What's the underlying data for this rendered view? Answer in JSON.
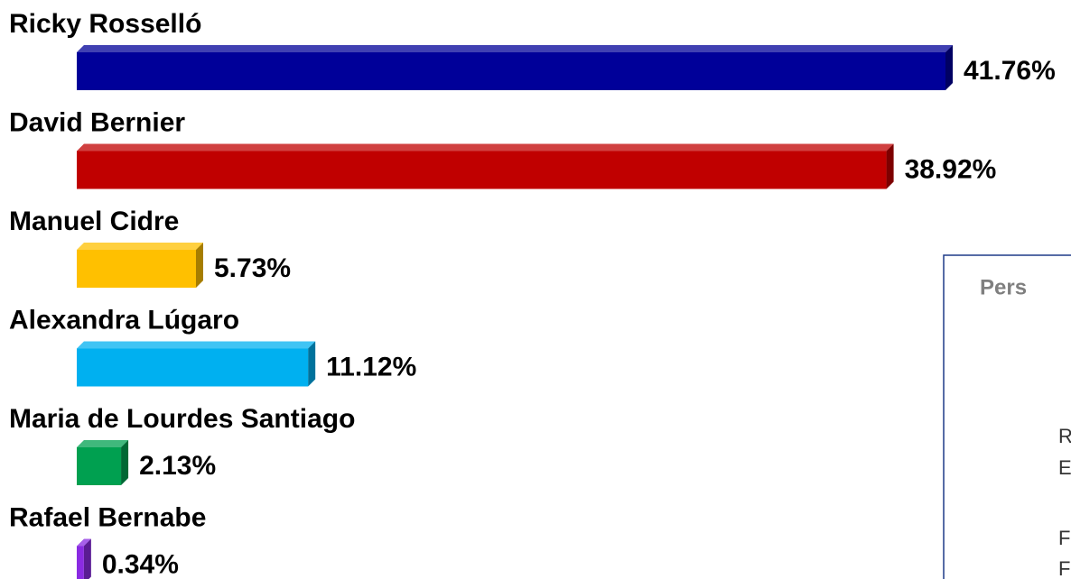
{
  "chart_data": {
    "type": "bar",
    "categories": [
      "Ricky Rosselló",
      "David Bernier",
      "Manuel Cidre",
      "Alexandra Lúgaro",
      "Maria de Lourdes Santiago",
      "Rafael Bernabe"
    ],
    "values": [
      41.76,
      38.92,
      5.73,
      11.12,
      2.13,
      0.34
    ],
    "value_labels": [
      "41.76%",
      "38.92%",
      "5.73%",
      "11.12%",
      "2.13%",
      "0.34%"
    ],
    "colors": [
      "#000099",
      "#c00000",
      "#ffc000",
      "#00b0f0",
      "#00a050",
      "#8a2be2"
    ],
    "xlim": [
      0,
      45
    ]
  },
  "box": {
    "title": "Pers",
    "lines": [
      "R",
      "E",
      "F",
      "F"
    ]
  }
}
